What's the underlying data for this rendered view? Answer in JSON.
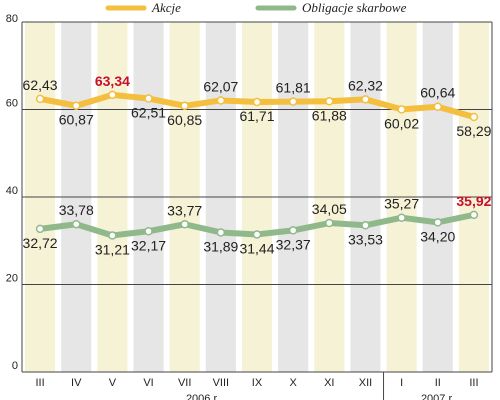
{
  "chart_data": {
    "type": "line",
    "categories": [
      "III",
      "IV",
      "V",
      "VI",
      "VII",
      "VIII",
      "IX",
      "X",
      "XI",
      "XII",
      "I",
      "II",
      "III"
    ],
    "series": [
      {
        "name": "Akcje",
        "values": [
          62.43,
          60.87,
          63.34,
          62.51,
          60.85,
          62.07,
          61.71,
          61.81,
          61.88,
          62.32,
          60.02,
          60.64,
          58.29
        ],
        "labels": [
          "62,43",
          "60,87",
          "63,34",
          "62,51",
          "60,85",
          "62,07",
          "61,71",
          "61,81",
          "61,88",
          "62,32",
          "60,02",
          "60,64",
          "58,29"
        ],
        "color": "#f4be3e",
        "highlight_index": 2
      },
      {
        "name": "Obligacje skarbowe",
        "values": [
          32.72,
          33.78,
          31.21,
          32.17,
          33.77,
          31.89,
          31.44,
          32.37,
          34.05,
          33.53,
          35.27,
          34.2,
          35.92
        ],
        "labels": [
          "32,72",
          "33,78",
          "31,21",
          "32,17",
          "33,77",
          "31,89",
          "31,44",
          "32,37",
          "34,05",
          "33,53",
          "35,27",
          "34,20",
          "35,92"
        ],
        "color": "#8fb98a",
        "highlight_index": 12
      }
    ],
    "ylim": [
      0,
      80
    ],
    "yticks": [
      0,
      20,
      40,
      60,
      80
    ],
    "year_labels": [
      "2006 r.",
      "2007 r."
    ],
    "year_groups": [
      [
        0,
        9
      ],
      [
        10,
        12
      ]
    ],
    "grid": true,
    "legend": "top",
    "colors": {
      "highlight_label": "#c8102e",
      "label": "#222222",
      "band_light": "#f6f2d6",
      "band_dark": "#e6e6e6",
      "grid": "#444444"
    }
  }
}
